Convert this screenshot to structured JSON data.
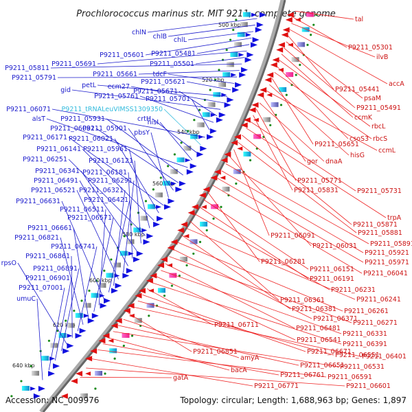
{
  "title": "Prochlorococcus marinus str. MIT 9211, complete genome",
  "footer": {
    "accession": "Accession: NC_009976",
    "summary": "Topology: circular; Length: 1,688,963 bp; Genes: 1,897"
  },
  "colors": {
    "forward_strand": "#1010e0",
    "reverse_strand": "#e01010",
    "trna": "#33bbdd",
    "backbone": "#777777"
  },
  "ruler_marks": [
    "500 kbp",
    "520 kbp",
    "540 kbp",
    "560 kbp",
    "580 kbp",
    "600 kbp",
    "620 kbp",
    "640 kbp"
  ],
  "left_labels": [
    "chlN",
    "chlB",
    "chlL",
    "P9211_05601",
    "P9211_05481",
    "P9211_05691",
    "P9211_05501",
    "P9211_05811",
    "P9211_05661",
    "P9211_05791",
    "tdcF",
    "P9211_05621",
    "petL",
    "ecm27",
    "gid",
    "P9211_05671",
    "P9211_05761",
    "P9211_05701",
    "P9211_06071",
    "P9211_tRNALeuVIMSS1309350",
    "crtH",
    "hisI",
    "alsT",
    "P9211_05931",
    "P9211_06081",
    "P9211_05901",
    "pbsY",
    "P9211_06171",
    "P9211_06021",
    "P9211_06141",
    "P9211_05961",
    "P9211_06251",
    "P9211_06121",
    "P9211_06341",
    "P9211_06181",
    "P9211_06491",
    "P9211_06291",
    "P9211_06521",
    "P9211_06321",
    "P9211_06421",
    "P9211_06631",
    "P9211_06511",
    "P9211_06571",
    "P9211_06661",
    "P9211_06821",
    "P9211_06741",
    "P9211_06861",
    "rpsO",
    "P9211_06891",
    "P9211_06901",
    "P9211_07001",
    "umuC"
  ],
  "right_labels": [
    "tal",
    "P9211_05301",
    "ilvB",
    "accA",
    "P9211_05441",
    "psaM",
    "P9211_05491",
    "ccmK",
    "rbcL",
    "csoS3",
    "rbcS",
    "P9211_05651",
    "hisG",
    "ccmL",
    "gor",
    "dnaA",
    "P9211_05771",
    "P9211_05831",
    "P9211_05731",
    "trpA",
    "P9211_05871",
    "P9211_05881",
    "P9211_06091",
    "P9211_06031",
    "P9211_05891",
    "P9211_05921",
    "P9211_05971",
    "P9211_06041",
    "P9211_06281",
    "P9211_06151",
    "P9211_06191",
    "P9211_06231",
    "P9211_06361",
    "P9211_06241",
    "P9211_06381",
    "P9211_06261",
    "P9211_06371",
    "P9211_06271",
    "P9211_06481",
    "P9211_06331",
    "P9211_06541",
    "P9211_06391",
    "P9211_06711",
    "P9211_06671",
    "P9211_06551",
    "P9211_06401",
    "P9211_06851",
    "amyA",
    "P9211_06651",
    "P9211_06531",
    "bacA",
    "P9211_06761",
    "P9211_06591",
    "P9211_06771",
    "P9211_06601",
    "gatA"
  ]
}
